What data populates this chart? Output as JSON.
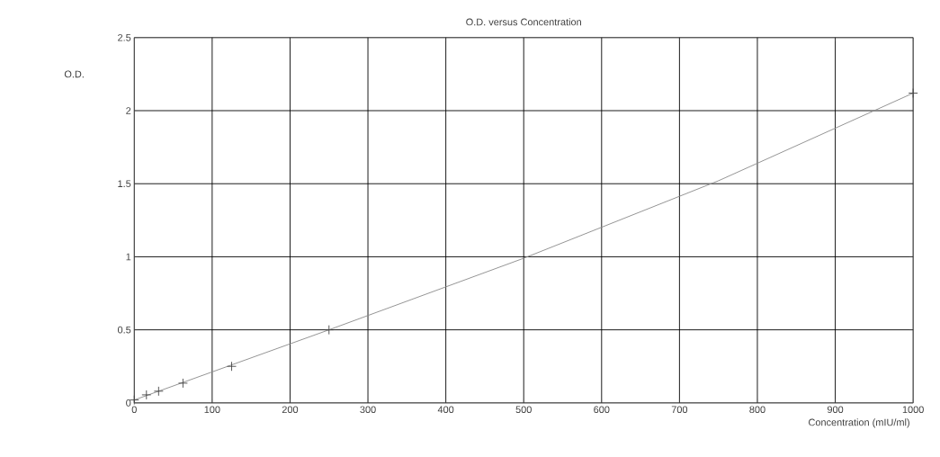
{
  "chart_data": {
    "type": "scatter",
    "title": "O.D. versus Concentration",
    "xlabel": "Concentration (mIU/ml)",
    "ylabel": "O.D.",
    "xlim": [
      0,
      1000
    ],
    "ylim": [
      0,
      2.5
    ],
    "xticks": [
      0,
      100,
      200,
      300,
      400,
      500,
      600,
      700,
      800,
      900,
      1000
    ],
    "yticks": [
      0,
      0.5,
      1,
      1.5,
      2,
      2.5
    ],
    "grid": true,
    "series": [
      {
        "marker": "cross",
        "color": "#444444",
        "x": [
          0,
          15.6,
          31.25,
          62.5,
          125,
          250,
          1000
        ],
        "values": [
          0.02,
          0.055,
          0.08,
          0.135,
          0.25,
          0.5,
          2.12
        ]
      },
      {
        "type": "line",
        "marker": "none",
        "color": "#888888",
        "x": [
          0,
          250,
          500,
          750,
          1000
        ],
        "values": [
          0.02,
          0.5,
          0.99,
          1.52,
          2.12
        ]
      }
    ]
  }
}
